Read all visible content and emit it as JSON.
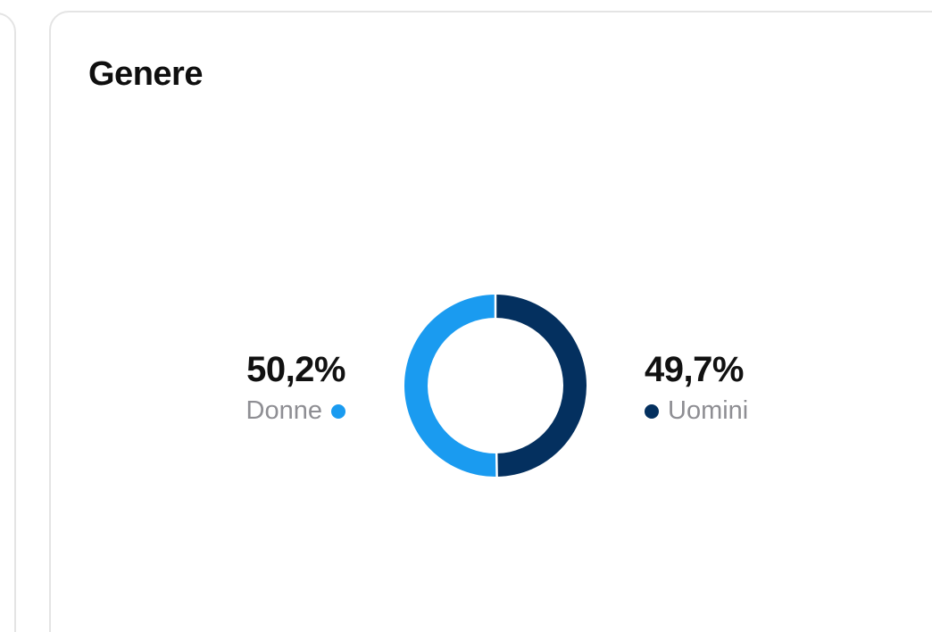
{
  "card": {
    "title": "Genere"
  },
  "colors": {
    "women": "#1A9BF0",
    "men": "#04305F",
    "border": "#E4E4E4"
  },
  "chart_data": {
    "type": "pie",
    "style": "donut",
    "title": "",
    "slices": [
      {
        "name": "Donne",
        "value": 50.2,
        "label": "50,2%",
        "color": "#1A9BF0"
      },
      {
        "name": "Uomini",
        "value": 49.7,
        "label": "49,7%",
        "color": "#04305F"
      }
    ],
    "legend": "beside-chart"
  },
  "stats": {
    "women": {
      "percent": "50,2%",
      "label": "Donne"
    },
    "men": {
      "percent": "49,7%",
      "label": "Uomini"
    }
  }
}
